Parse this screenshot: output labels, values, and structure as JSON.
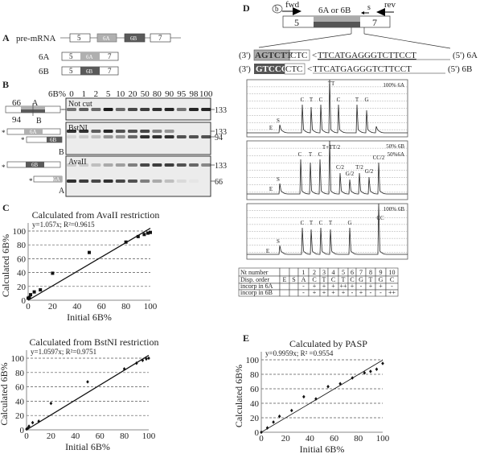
{
  "panel_labels": {
    "a": "A",
    "b": "B",
    "c": "C",
    "d": "D",
    "e": "E"
  },
  "panel_a": {
    "pre_mrna_label": "pre-mRNA",
    "exons": {
      "e5": "5",
      "e6a": "6A",
      "e6b": "6B",
      "e7": "7"
    },
    "row_6a_label": "6A",
    "row_6b_label": "6B",
    "colors": {
      "exon_6a": "#b0b0b0",
      "exon_6b": "#5a5a5a",
      "intron_line": "#888888"
    }
  },
  "panel_b": {
    "lane_header": "6B%",
    "lanes": [
      "0",
      "1",
      "2",
      "5",
      "10",
      "20",
      "50",
      "80",
      "90",
      "95",
      "98",
      "100"
    ],
    "gels": [
      {
        "name": "Not cut",
        "sizes": [
          "133"
        ]
      },
      {
        "name": "BstNI",
        "sizes": [
          "133",
          "94"
        ]
      },
      {
        "name": "AvaII",
        "sizes": [
          "133",
          "66"
        ]
      }
    ],
    "diagram": {
      "len_a": "66",
      "len_b": "94",
      "site_a": "A",
      "site_b": "B",
      "star": "*",
      "ex6a": "6A",
      "ex6b": "6B"
    }
  },
  "panel_d": {
    "primer_b": "b",
    "fwd": "fwd",
    "rev": "rev",
    "s": "s",
    "exon5": "5",
    "exon7": "7",
    "middle": "6A or 6B",
    "seq_6a": {
      "prefix": "(3')",
      "box": "AGTCTT",
      "ctc": "CTC",
      "arrow": "<",
      "primer": "TTCATGAGGGTCTTCCT",
      "suffix": "(5') 6A"
    },
    "seq_6b": {
      "prefix": "(3')",
      "box": "GTCCG",
      "ctc": "CTC",
      "arrow": "<",
      "primer": "TTCATGAGGGTCTTCCT",
      "suffix": "(5') 6B"
    },
    "pyrograms": [
      {
        "title": "100% 6A",
        "peaks": [
          "E",
          "S",
          "C",
          "T",
          "C",
          "TT",
          "C",
          "T",
          "G"
        ]
      },
      {
        "title": "50% 6B",
        "title2": "50%6A",
        "peaks": [
          "E",
          "S",
          "C",
          "T",
          "C",
          "T+TT/2",
          "C/2",
          "G/2",
          "T/2",
          "G/2",
          "CC/2"
        ]
      },
      {
        "title": "100% 6B",
        "peaks": [
          "E",
          "S",
          "C",
          "T",
          "C",
          "T",
          "G",
          "CC"
        ]
      }
    ],
    "table": {
      "rows": [
        [
          "Nt number",
          "",
          "",
          "1",
          "2",
          "3",
          "4",
          "5",
          "6",
          "7",
          "8",
          "9",
          "10"
        ],
        [
          "Disp. order",
          "E",
          "S",
          "A",
          "C",
          "T",
          "C",
          "T",
          "C",
          "G",
          "T",
          "G",
          "C"
        ],
        [
          "incorp in 6A",
          "",
          "",
          "-",
          "+",
          "+",
          "+",
          "++",
          "+",
          "-",
          "+",
          "+",
          "-"
        ],
        [
          "incorp in 6B",
          "",
          "",
          "-",
          "+",
          "+",
          "+",
          "+",
          "-",
          "+",
          "-",
          "-",
          "++"
        ]
      ]
    }
  },
  "chart_data": [
    {
      "id": "avaii",
      "type": "scatter",
      "title": "Calculated from AvaII restriction",
      "equation": "y=1.057x; R²=0.9615",
      "xlabel": "Initial 6B%",
      "ylabel": "Calculated 6B%",
      "xlim": [
        0,
        100
      ],
      "ylim": [
        0,
        100
      ],
      "xticks": [
        "0",
        "20",
        "40",
        "60",
        "80",
        "100"
      ],
      "yticks": [
        "0",
        "20",
        "40",
        "60",
        "80",
        "100"
      ],
      "grid": "horizontal dashed",
      "fit_slope": 1.057,
      "marker": "square",
      "x": [
        0,
        1,
        2,
        5,
        10,
        20,
        50,
        80,
        90,
        95,
        98,
        100
      ],
      "y": [
        3,
        4,
        8,
        12,
        15,
        39,
        69,
        84,
        92,
        95,
        97,
        98
      ]
    },
    {
      "id": "bstni",
      "type": "scatter",
      "title": "Calculated from BstNI restriction",
      "equation": "y=1.0597x; R²=0.9751",
      "xlabel": "Initial 6B%",
      "ylabel": "Calculated 6B%",
      "xlim": [
        0,
        100
      ],
      "ylim": [
        0,
        100
      ],
      "xticks": [
        "0",
        "20",
        "40",
        "60",
        "80",
        "100"
      ],
      "yticks": [
        "0",
        "20",
        "40",
        "60",
        "80",
        "100"
      ],
      "grid": "horizontal dashed",
      "fit_slope": 1.0597,
      "marker": "diamond",
      "x": [
        0,
        1,
        2,
        5,
        10,
        20,
        50,
        80,
        90,
        95,
        98,
        100
      ],
      "y": [
        1,
        2,
        5,
        10,
        12,
        37,
        67,
        85,
        93,
        97,
        99,
        100
      ]
    },
    {
      "id": "pasp",
      "type": "scatter",
      "title": "Calculated by PASP",
      "equation": "y=0.9959x; R² =0.9554",
      "xlabel": "Initial 6B%",
      "ylabel": "Calculated 6B%",
      "xlim": [
        0,
        100
      ],
      "ylim": [
        0,
        100
      ],
      "xticks": [
        "0",
        "20",
        "40",
        "60",
        "80",
        "100"
      ],
      "yticks": [
        "0",
        "20",
        "40",
        "60",
        "80",
        "100"
      ],
      "grid": "horizontal dashed",
      "fit_slope": 0.9959,
      "marker": "diamond",
      "x": [
        0,
        5,
        10,
        15,
        25,
        35,
        45,
        55,
        65,
        75,
        85,
        90,
        95,
        100
      ],
      "y": [
        0,
        6,
        14,
        22,
        30,
        49,
        46,
        63,
        67,
        75,
        82,
        84,
        87,
        95
      ]
    }
  ]
}
